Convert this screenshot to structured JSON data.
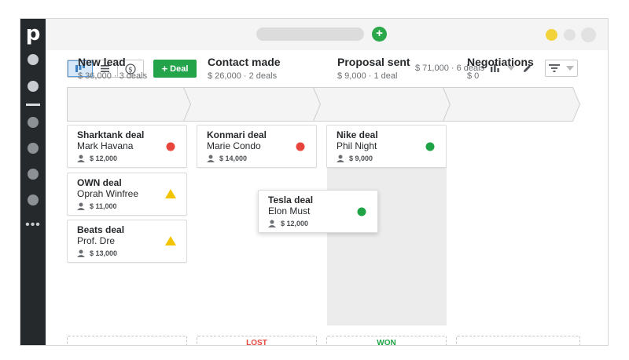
{
  "sidebar": {
    "logo": "p",
    "more": "•••"
  },
  "topbar": {
    "add_label": "+"
  },
  "toolbar": {
    "deal_button_label": "Deal",
    "summary": "$ 71,000 · 6 deals"
  },
  "stages": [
    {
      "name": "New lead",
      "meta": "$ 36,000 · 3 deals"
    },
    {
      "name": "Contact made",
      "meta": "$ 26,000 · 2 deals"
    },
    {
      "name": "Proposal sent",
      "meta": "$ 9,000 · 1 deal"
    },
    {
      "name": "Negotiations",
      "meta": "$ 0"
    }
  ],
  "deals": [
    {
      "title": "Sharktank deal",
      "person": "Mark Havana",
      "value": "$ 12,000",
      "status": "red-dot"
    },
    {
      "title": "OWN deal",
      "person": "Oprah Winfree",
      "value": "$ 11,000",
      "status": "yellow-warning"
    },
    {
      "title": "Beats deal",
      "person": "Prof. Dre",
      "value": "$ 13,000",
      "status": "yellow-warning"
    },
    {
      "title": "Konmari deal",
      "person": "Marie Condo",
      "value": "$ 14,000",
      "status": "red-dot"
    },
    {
      "title": "Nike deal",
      "person": "Phil Night",
      "value": "$ 9,000",
      "status": "green-dot"
    },
    {
      "title": "Tesla deal",
      "person": "Elon Must",
      "value": "$ 12,000",
      "status": "green-dot"
    }
  ],
  "drop_zones": {
    "lost": "LOST",
    "won": "WON"
  },
  "colors": {
    "brand_green": "#24a44a",
    "status_red": "#e8453c",
    "status_yellow": "#f2c500",
    "status_green": "#1ea446",
    "lost_text": "#e8453c",
    "won_text": "#1ea446",
    "sidebar_bg": "#25292c"
  },
  "icons": {
    "pipeline_view": "pipeline-view-icon",
    "list_view": "list-view-icon",
    "forecast_view": "forecast-dollar-icon",
    "stats": "bar-chart-icon",
    "edit": "pencil-icon",
    "filter": "filter-icon",
    "person": "person-icon"
  }
}
